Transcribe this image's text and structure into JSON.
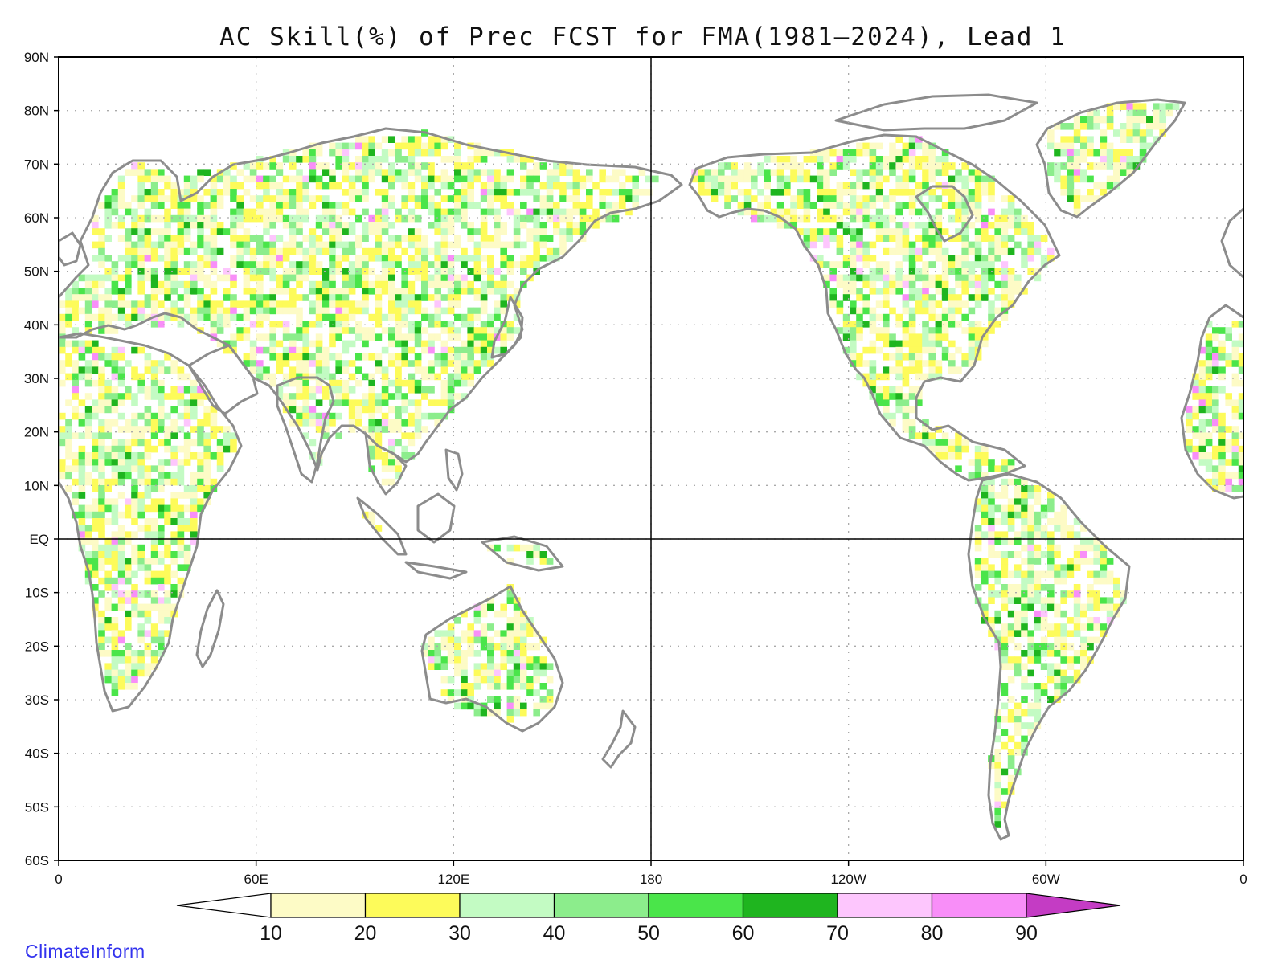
{
  "title": "AC Skill(%) of Prec FCST for FMA(1981–2024), Lead 1",
  "credit": "ClimateInform",
  "lat_labels": [
    "90N",
    "80N",
    "70N",
    "60N",
    "50N",
    "40N",
    "30N",
    "20N",
    "10N",
    "EQ",
    "10S",
    "20S",
    "30S",
    "40S",
    "50S",
    "60S"
  ],
  "lon_labels": [
    "0",
    "60E",
    "120E",
    "180",
    "120W",
    "60W",
    "0"
  ],
  "colorbar": {
    "thresholds": [
      "10",
      "20",
      "30",
      "40",
      "50",
      "60",
      "70",
      "80",
      "90"
    ],
    "colors": [
      "#ffffff",
      "#fdfbc6",
      "#fdfb5a",
      "#c3fbc3",
      "#8ced8c",
      "#4ae54a",
      "#1fb51f",
      "#fdc6fd",
      "#f88ef8",
      "#c43cc4"
    ]
  },
  "colors": {
    "coast": "#8c8c8c",
    "frame": "#000000",
    "grid": "#aaaaaa",
    "credit": "#3333ee"
  }
}
